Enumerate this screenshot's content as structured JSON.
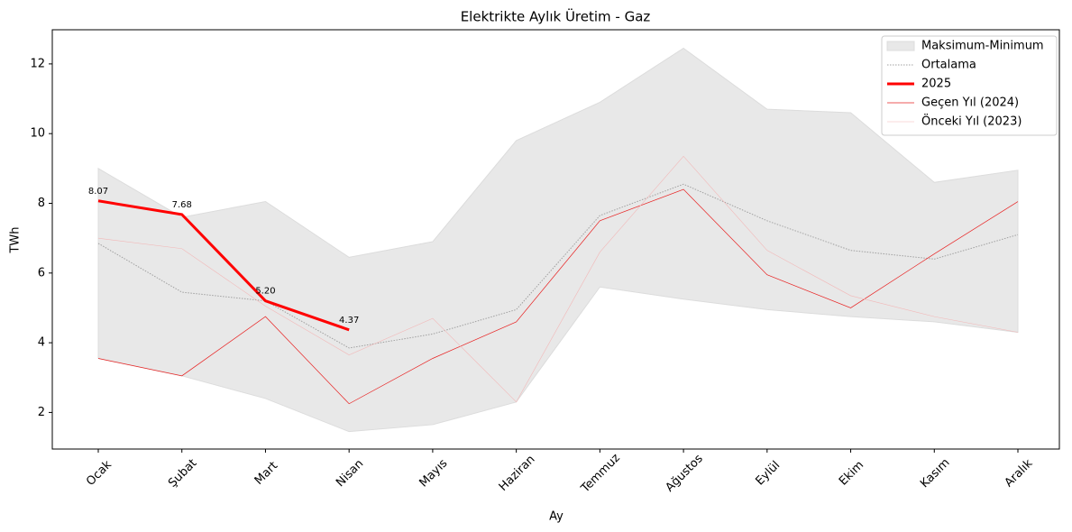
{
  "chart_data": {
    "type": "line",
    "title": "Elektrikte Aylık Üretim - Gaz",
    "x_label": "Ay",
    "y_label": "TWh",
    "categories": [
      "Ocak",
      "Şubat",
      "Mart",
      "Nisan",
      "Mayıs",
      "Haziran",
      "Temmuz",
      "Ağustos",
      "Eylül",
      "Ekim",
      "Kasım",
      "Aralık"
    ],
    "band": {
      "name": "Maksimum-Minimum",
      "color": "#e8e8e8",
      "upper": [
        9.0,
        7.6,
        8.05,
        6.45,
        6.9,
        9.8,
        10.9,
        12.45,
        10.7,
        10.6,
        8.6,
        8.95
      ],
      "lower": [
        3.55,
        3.05,
        2.4,
        1.45,
        1.65,
        2.3,
        5.6,
        5.25,
        4.95,
        4.75,
        4.6,
        4.3
      ]
    },
    "series": [
      {
        "name": "Ortalama",
        "color": "#a0a0a0",
        "values": [
          6.85,
          5.45,
          5.2,
          3.85,
          4.25,
          4.95,
          7.65,
          8.55,
          7.5,
          6.65,
          6.4,
          7.1
        ]
      },
      {
        "name": "2025",
        "color": "#ff0000",
        "values": [
          8.07,
          7.68,
          5.2,
          4.37,
          null,
          null,
          null,
          null,
          null,
          null,
          null,
          null
        ],
        "value_labels": [
          "8.07",
          "7.68",
          "5.20",
          "4.37",
          null,
          null,
          null,
          null,
          null,
          null,
          null,
          null
        ]
      },
      {
        "name": "Geçen Yıl (2024)",
        "color": "#e82020",
        "values": [
          3.55,
          3.05,
          4.75,
          2.25,
          3.55,
          4.6,
          7.5,
          8.4,
          5.95,
          5.0,
          6.55,
          8.05
        ]
      },
      {
        "name": "Önceki Yıl (2023)",
        "color": "#f2b8b8",
        "values": [
          7.0,
          6.7,
          5.05,
          3.65,
          4.7,
          2.3,
          6.6,
          9.35,
          6.65,
          5.35,
          4.75,
          4.3
        ]
      }
    ],
    "ylim": [
      0.95,
      12.98
    ],
    "yticks": [
      2,
      4,
      6,
      8,
      10,
      12
    ],
    "legend": "upper right"
  }
}
